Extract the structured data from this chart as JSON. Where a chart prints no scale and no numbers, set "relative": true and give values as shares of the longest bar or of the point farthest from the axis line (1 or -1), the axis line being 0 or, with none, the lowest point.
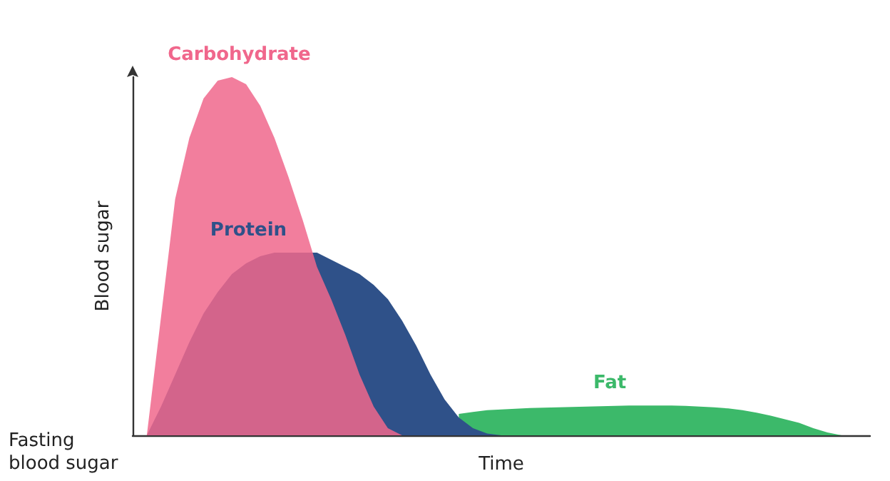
{
  "chart_data": {
    "type": "area",
    "relative": true,
    "xlabel": "Time",
    "ylabel": "Blood sugar",
    "annotations": [
      "Fasting\nblood sugar"
    ],
    "legend": false,
    "grid": false,
    "marker": "none",
    "categories": [
      null,
      null,
      null,
      null,
      null,
      null,
      null,
      null,
      null,
      null,
      null,
      null,
      null,
      null,
      null,
      null,
      null,
      null,
      null,
      null,
      null,
      null,
      null,
      null,
      null,
      null,
      null,
      null,
      null,
      null,
      null,
      null,
      null,
      null,
      null,
      null,
      null,
      null,
      null,
      null,
      null,
      null,
      null,
      null,
      null,
      null,
      null,
      null,
      null,
      null,
      null,
      null,
      null
    ],
    "series": [
      {
        "name": "Fat",
        "color": "#3cb96a",
        "values": [
          null,
          null,
          null,
          null,
          null,
          null,
          null,
          null,
          null,
          null,
          null,
          null,
          null,
          null,
          null,
          null,
          null,
          null,
          null,
          null,
          null,
          null,
          null,
          0.06,
          0.065,
          0.07,
          0.072,
          0.074,
          0.076,
          0.077,
          0.078,
          0.079,
          0.08,
          0.081,
          0.082,
          0.083,
          0.083,
          0.083,
          0.083,
          0.082,
          0.08,
          0.078,
          0.075,
          0.07,
          0.063,
          0.055,
          0.045,
          0.035,
          0.02,
          0.008,
          0,
          null,
          null
        ]
      },
      {
        "name": "Protein",
        "color": "#2f5189",
        "values": [
          null,
          0,
          0.08,
          0.17,
          0.26,
          0.34,
          0.4,
          0.45,
          0.48,
          0.5,
          0.51,
          0.51,
          0.51,
          0.51,
          0.49,
          0.47,
          0.45,
          0.42,
          0.38,
          0.32,
          0.25,
          0.17,
          0.1,
          0.05,
          0.02,
          0.005,
          0,
          null,
          null,
          null,
          null,
          null,
          null,
          null,
          null,
          null,
          null,
          null,
          null,
          null,
          null,
          null,
          null,
          null,
          null,
          null,
          null,
          null,
          null,
          null,
          null,
          null,
          null
        ]
      },
      {
        "name": "Carbohydrate",
        "color": "#f0678c",
        "values": [
          null,
          0,
          0.33,
          0.66,
          0.83,
          0.94,
          0.99,
          1,
          0.98,
          0.92,
          0.83,
          0.72,
          0.6,
          0.47,
          0.38,
          0.28,
          0.17,
          0.08,
          0.02,
          0,
          null,
          null,
          null,
          null,
          null,
          null,
          null,
          null,
          null,
          null,
          null,
          null,
          null,
          null,
          null,
          null,
          null,
          null,
          null,
          null,
          null,
          null,
          null,
          null,
          null,
          null,
          null,
          null,
          null,
          null,
          null,
          null,
          null
        ]
      }
    ]
  }
}
